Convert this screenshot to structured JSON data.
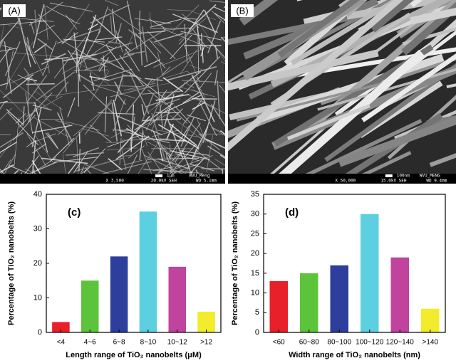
{
  "panels": [
    {
      "label": "(A)",
      "scale": "1μm",
      "operator": "WVU_Meng",
      "magnification": "X 3,500",
      "voltage": "20.0kV SEH",
      "distance": "WD 5.1mm"
    },
    {
      "label": "(B)",
      "scale": "100nm",
      "operator": "WVU_MENG",
      "magnification": "X 50,000",
      "voltage": "15.0kV SEH",
      "distance": "WD 9.4mm"
    }
  ],
  "chart_data": [
    {
      "type": "bar",
      "title": "(c)",
      "x_label": "Length range of TiO₂ nanobelts (μM)",
      "y_label": "Percentage of TiO₂ nanobelts (%)",
      "categories": [
        "<4",
        "4~6",
        "6~8",
        "8~10",
        "10~12",
        ">12"
      ],
      "values": [
        3,
        15,
        22,
        35,
        19,
        6
      ],
      "colors": [
        "#e8202a",
        "#5cc43a",
        "#2e3e9c",
        "#5ccfe0",
        "#c0449e",
        "#f2ec2c"
      ],
      "ylim": [
        0,
        40
      ],
      "yticks": [
        0,
        10,
        20,
        30,
        40
      ]
    },
    {
      "type": "bar",
      "title": "(d)",
      "x_label": "Width range of TiO₂ nanobelts (nm)",
      "y_label": "Percentage of TiO₂ nanobelts (%)",
      "categories": [
        "<60",
        "60~80",
        "80~100",
        "100~120",
        "120~140",
        ">140"
      ],
      "values": [
        13,
        15,
        17,
        30,
        19,
        6
      ],
      "colors": [
        "#e8202a",
        "#5cc43a",
        "#2e3e9c",
        "#5ccfe0",
        "#c0449e",
        "#f2ec2c"
      ],
      "ylim": [
        0,
        35
      ],
      "yticks": [
        0,
        5,
        10,
        15,
        20,
        25,
        30,
        35
      ]
    }
  ]
}
